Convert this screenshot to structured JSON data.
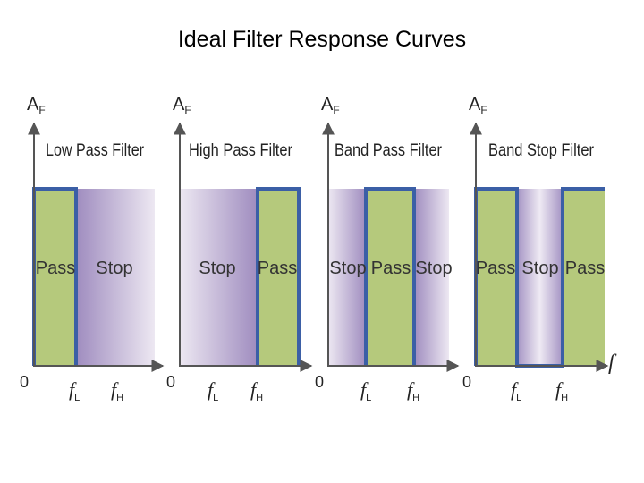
{
  "title": "Ideal Filter Response Curves",
  "axis": {
    "y_label_main": "A",
    "y_label_sub": "F",
    "origin": "0",
    "x_label": "f"
  },
  "cutoffs": {
    "low": {
      "main": "f",
      "sub": "L"
    },
    "high": {
      "main": "f",
      "sub": "H"
    }
  },
  "colors": {
    "pass_fill": "#b5c97c",
    "pass_outline": "#3b5fa6",
    "stop_gradient_start": "#ede8f2",
    "stop_gradient_end": "#9f8cbf",
    "axis": "#555555"
  },
  "panels": [
    {
      "name": "Low Pass Filter",
      "bands": [
        "Pass",
        "Stop"
      ]
    },
    {
      "name": "High Pass Filter",
      "bands": [
        "Stop",
        "Pass"
      ]
    },
    {
      "name": "Band Pass Filter",
      "bands": [
        "Stop",
        "Pass",
        "Stop"
      ]
    },
    {
      "name": "Band Stop Filter",
      "bands": [
        "Pass",
        "Stop",
        "Pass"
      ]
    }
  ]
}
